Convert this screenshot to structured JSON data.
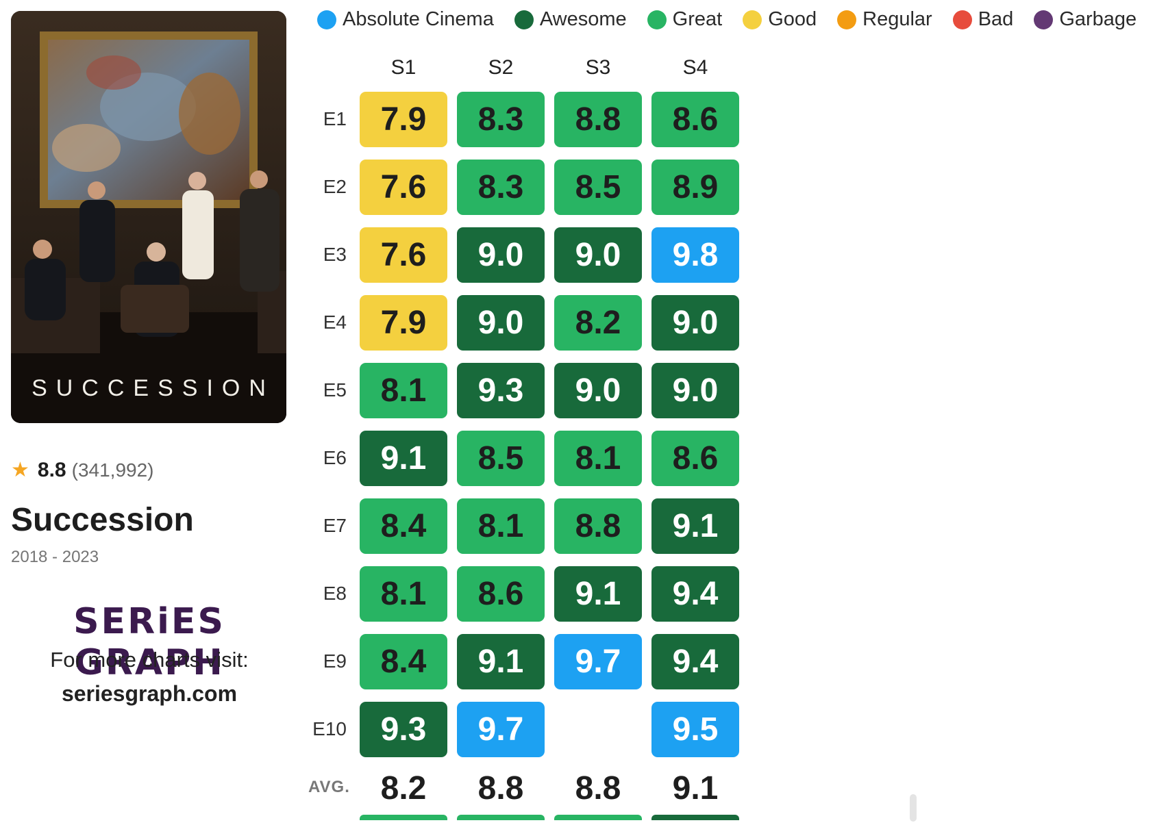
{
  "poster": {
    "title": "SUCCESSION"
  },
  "show": {
    "rating": "8.8",
    "votes": "(341,992)",
    "title": "Succession",
    "years": "2018 - 2023"
  },
  "branding": {
    "logo": "SERiES GRAPH",
    "visit_text": "For more charts visit:",
    "url": "seriesgraph.com"
  },
  "icons": {
    "rating": "star-icon"
  },
  "legend": [
    {
      "label": "Absolute Cinema",
      "color": "#1da1f2"
    },
    {
      "label": "Awesome",
      "color": "#186a3b"
    },
    {
      "label": "Great",
      "color": "#28b463"
    },
    {
      "label": "Good",
      "color": "#f4d03f"
    },
    {
      "label": "Regular",
      "color": "#f39c12"
    },
    {
      "label": "Bad",
      "color": "#e74c3c"
    },
    {
      "label": "Garbage",
      "color": "#633974"
    }
  ],
  "chart_data": {
    "type": "heatmap",
    "columns": [
      "S1",
      "S2",
      "S3",
      "S4"
    ],
    "rows": [
      "E1",
      "E2",
      "E3",
      "E4",
      "E5",
      "E6",
      "E7",
      "E8",
      "E9",
      "E10"
    ],
    "values": [
      [
        "7.9",
        "8.3",
        "8.8",
        "8.6"
      ],
      [
        "7.6",
        "8.3",
        "8.5",
        "8.9"
      ],
      [
        "7.6",
        "9.0",
        "9.0",
        "9.8"
      ],
      [
        "7.9",
        "9.0",
        "8.2",
        "9.0"
      ],
      [
        "8.1",
        "9.3",
        "9.0",
        "9.0"
      ],
      [
        "9.1",
        "8.5",
        "8.1",
        "8.6"
      ],
      [
        "8.4",
        "8.1",
        "8.8",
        "9.1"
      ],
      [
        "8.1",
        "8.6",
        "9.1",
        "9.4"
      ],
      [
        "8.4",
        "9.1",
        "9.7",
        "9.4"
      ],
      [
        "9.3",
        "9.7",
        null,
        "9.5"
      ]
    ],
    "avg_label": "AVG.",
    "averages": [
      "8.2",
      "8.8",
      "8.8",
      "9.1"
    ]
  }
}
